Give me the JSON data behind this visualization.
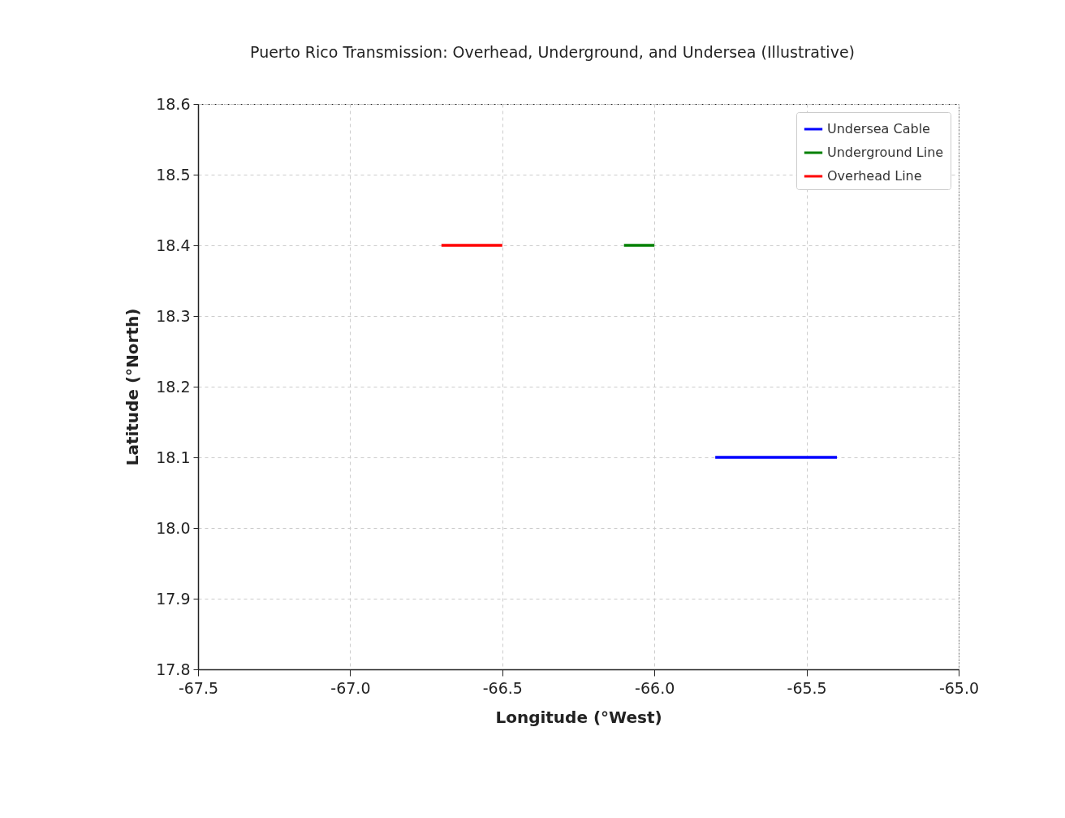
{
  "chart_data": {
    "type": "line",
    "title": "Puerto Rico Transmission: Overhead, Underground, and Undersea (Illustrative)",
    "xlabel": "Longitude (°West)",
    "ylabel": "Latitude (°North)",
    "series": [
      {
        "name": "Undersea Cable",
        "color": "#0000ff",
        "x": [
          -65.8,
          -65.4
        ],
        "values": [
          18.1,
          18.1
        ]
      },
      {
        "name": "Underground Line",
        "color": "#008000",
        "x": [
          -66.1,
          -66.0
        ],
        "values": [
          18.4,
          18.4
        ]
      },
      {
        "name": "Overhead Line",
        "color": "#ff0000",
        "x": [
          -66.7,
          -66.5
        ],
        "values": [
          18.4,
          18.4
        ]
      }
    ],
    "xlim": [
      -67.5,
      -65.0
    ],
    "xticks": [
      -67.5,
      {
        "value": -67,
        "label": "-67.0"
      },
      -66.5,
      {
        "value": -66,
        "label": "-66.0"
      },
      -65.5,
      {
        "value": -65,
        "label": "-65.0"
      }
    ],
    "ylim": [
      17.8,
      18.6
    ],
    "yticks": [
      17.8,
      17.9,
      {
        "value": 18,
        "label": "18.0"
      },
      18.1,
      18.2,
      18.3,
      18.4,
      18.5,
      18.6
    ],
    "grid": true,
    "legend": "top right",
    "marker": "none",
    "line_style": "solid"
  }
}
